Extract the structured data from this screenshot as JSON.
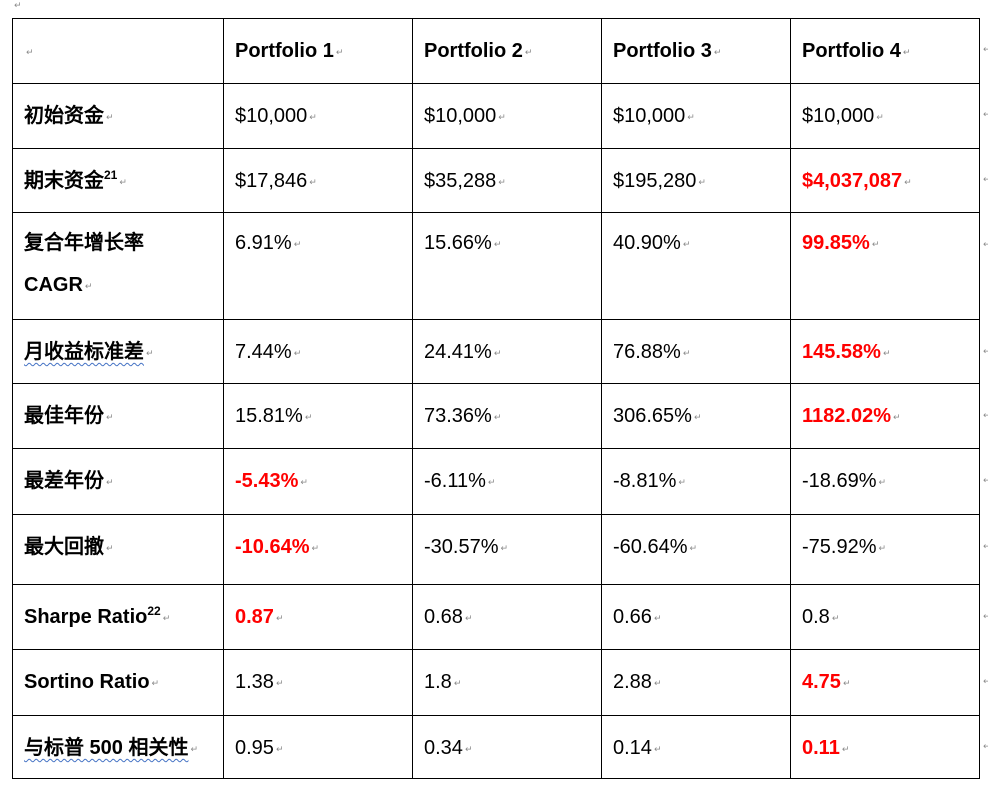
{
  "paragraph_mark": "↵",
  "columns": [
    "",
    "Portfolio 1",
    "Portfolio 2",
    "Portfolio 3",
    "Portfolio 4"
  ],
  "rows": [
    {
      "label": "初始资金",
      "footnote": "",
      "values": [
        "$10,000",
        "$10,000",
        "$10,000",
        "$10,000"
      ],
      "highlight": [
        false,
        false,
        false,
        false
      ]
    },
    {
      "label": "期末资金",
      "footnote": "21",
      "values": [
        "$17,846",
        "$35,288",
        "$195,280",
        "$4,037,087"
      ],
      "highlight": [
        false,
        false,
        false,
        true
      ]
    },
    {
      "label": "复合年增长率",
      "label_line2": "CAGR",
      "footnote": "",
      "values": [
        "6.91%",
        "15.66%",
        "40.90%",
        "99.85%"
      ],
      "highlight": [
        false,
        false,
        false,
        true
      ]
    },
    {
      "label": "月收益标准差",
      "footnote": "",
      "values": [
        "7.44%",
        "24.41%",
        "76.88%",
        "145.58%"
      ],
      "highlight": [
        false,
        false,
        false,
        true
      ]
    },
    {
      "label": "最佳年份",
      "footnote": "",
      "values": [
        "15.81%",
        "73.36%",
        "306.65%",
        "1182.02%"
      ],
      "highlight": [
        false,
        false,
        false,
        true
      ]
    },
    {
      "label": "最差年份",
      "footnote": "",
      "values": [
        "-5.43%",
        "-6.11%",
        "-8.81%",
        "-18.69%"
      ],
      "highlight": [
        true,
        false,
        false,
        false
      ]
    },
    {
      "label": "最大回撤",
      "footnote": "",
      "values": [
        "-10.64%",
        "-30.57%",
        "-60.64%",
        "-75.92%"
      ],
      "highlight": [
        true,
        false,
        false,
        false
      ]
    },
    {
      "label": "Sharpe Ratio",
      "footnote": "22",
      "values": [
        "0.87",
        "0.68",
        "0.66",
        "0.8"
      ],
      "highlight": [
        true,
        false,
        false,
        false
      ]
    },
    {
      "label": "Sortino Ratio",
      "footnote": "",
      "values": [
        "1.38",
        "1.8",
        "2.88",
        "4.75"
      ],
      "highlight": [
        false,
        false,
        false,
        true
      ]
    },
    {
      "label": "与标普 500 相关性",
      "footnote": "",
      "values": [
        "0.95",
        "0.34",
        "0.14",
        "0.11"
      ],
      "highlight": [
        false,
        false,
        false,
        true
      ]
    }
  ],
  "colors": {
    "highlight": "#ff0000",
    "border": "#000000",
    "spellcheck": "#4472c4"
  }
}
